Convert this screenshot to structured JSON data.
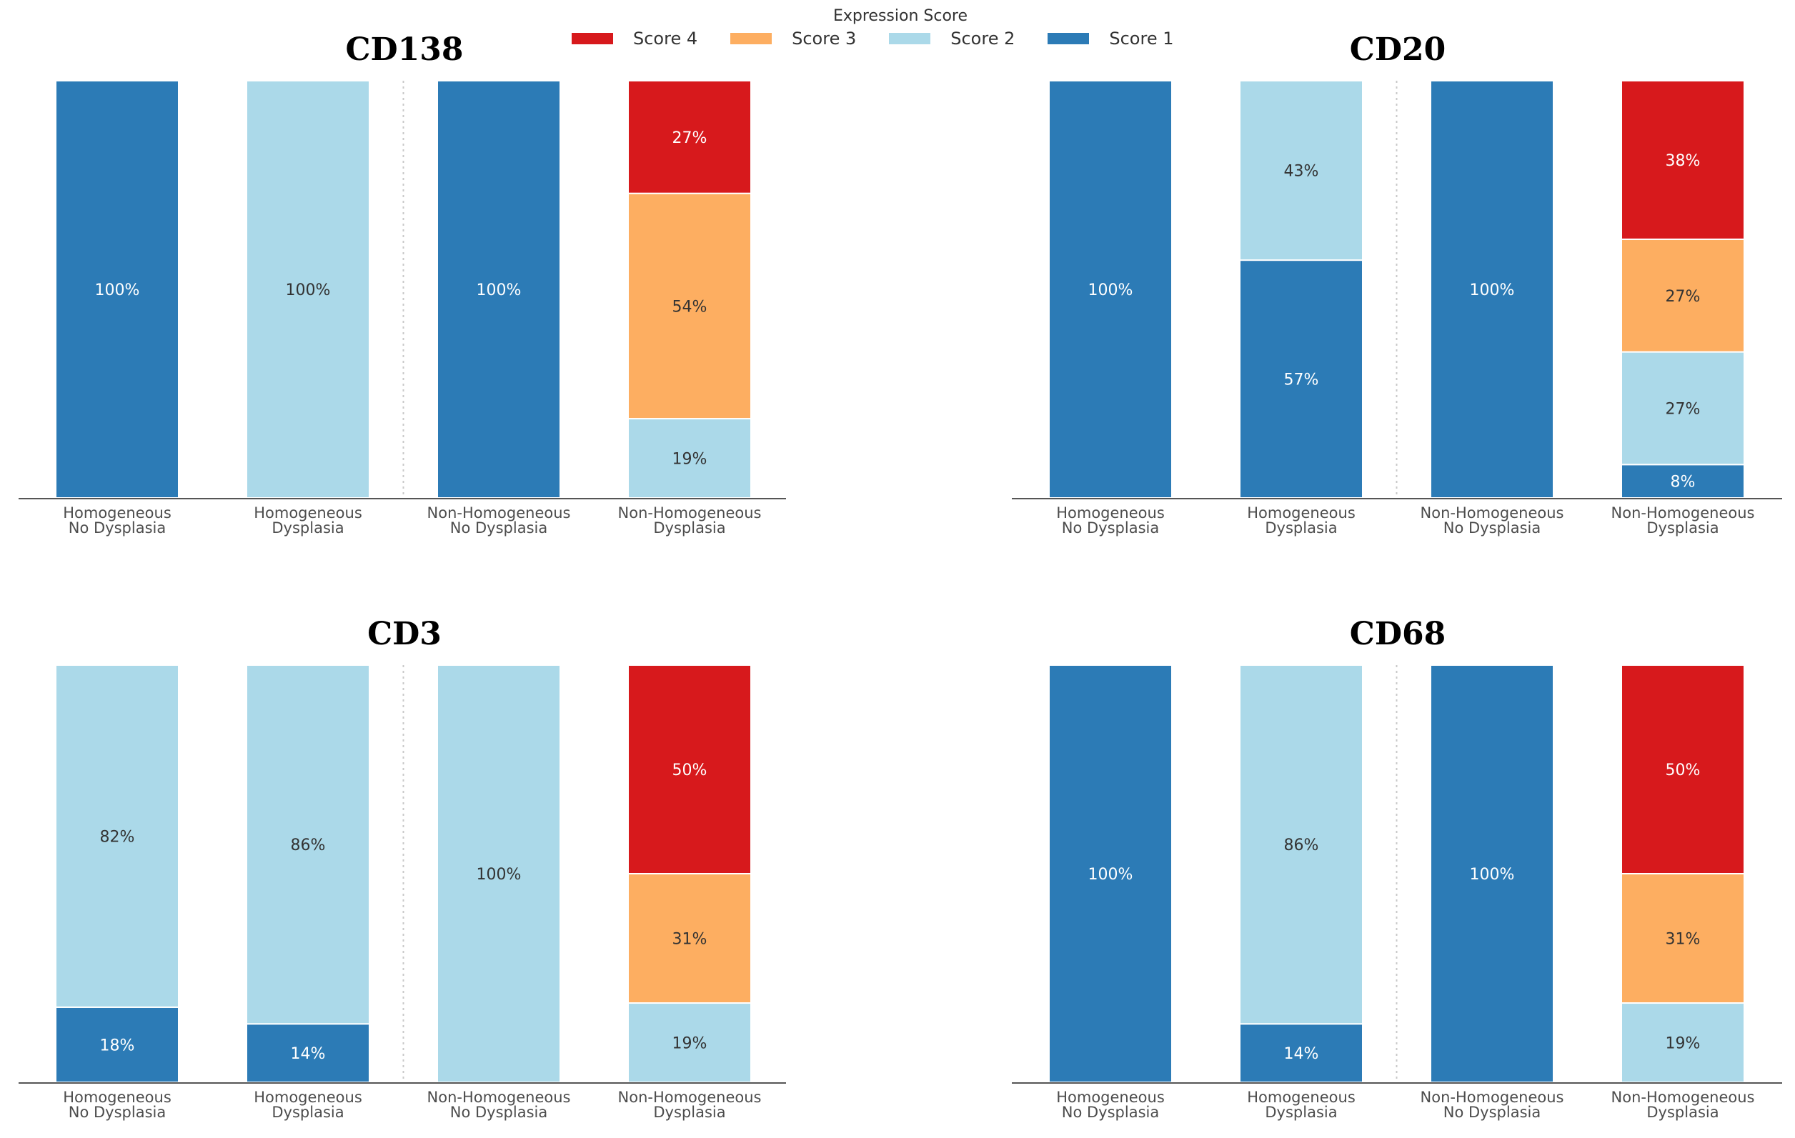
{
  "legend": {
    "title": "Expression Score",
    "items": [
      {
        "label": "Score 4",
        "color": "#d7191c"
      },
      {
        "label": "Score 3",
        "color": "#fdae61"
      },
      {
        "label": "Score 2",
        "color": "#abd9e9"
      },
      {
        "label": "Score 1",
        "color": "#2c7bb6"
      }
    ]
  },
  "chart_data": [
    {
      "type": "bar",
      "stacked": true,
      "title": "CD138",
      "categories": [
        [
          "Homogeneous",
          "No Dysplasia"
        ],
        [
          "Homogeneous",
          "Dysplasia"
        ],
        [
          "Non-Homogeneous",
          "No Dysplasia"
        ],
        [
          "Non-Homogeneous",
          "Dysplasia"
        ]
      ],
      "series": [
        {
          "name": "Score 1",
          "values": [
            100,
            0,
            100,
            0
          ]
        },
        {
          "name": "Score 2",
          "values": [
            0,
            100,
            0,
            19
          ]
        },
        {
          "name": "Score 3",
          "values": [
            0,
            0,
            0,
            54
          ]
        },
        {
          "name": "Score 4",
          "values": [
            0,
            0,
            0,
            27
          ]
        }
      ],
      "ylim": [
        0,
        100
      ]
    },
    {
      "type": "bar",
      "stacked": true,
      "title": "CD20",
      "categories": [
        [
          "Homogeneous",
          "No Dysplasia"
        ],
        [
          "Homogeneous",
          "Dysplasia"
        ],
        [
          "Non-Homogeneous",
          "No Dysplasia"
        ],
        [
          "Non-Homogeneous",
          "Dysplasia"
        ]
      ],
      "series": [
        {
          "name": "Score 1",
          "values": [
            100,
            57,
            100,
            8
          ]
        },
        {
          "name": "Score 2",
          "values": [
            0,
            43,
            0,
            27
          ]
        },
        {
          "name": "Score 3",
          "values": [
            0,
            0,
            0,
            27
          ]
        },
        {
          "name": "Score 4",
          "values": [
            0,
            0,
            0,
            38
          ]
        }
      ],
      "ylim": [
        0,
        100
      ]
    },
    {
      "type": "bar",
      "stacked": true,
      "title": "CD3",
      "categories": [
        [
          "Homogeneous",
          "No Dysplasia"
        ],
        [
          "Homogeneous",
          "Dysplasia"
        ],
        [
          "Non-Homogeneous",
          "No Dysplasia"
        ],
        [
          "Non-Homogeneous",
          "Dysplasia"
        ]
      ],
      "series": [
        {
          "name": "Score 1",
          "values": [
            18,
            14,
            0,
            0
          ]
        },
        {
          "name": "Score 2",
          "values": [
            82,
            86,
            100,
            19
          ]
        },
        {
          "name": "Score 3",
          "values": [
            0,
            0,
            0,
            31
          ]
        },
        {
          "name": "Score 4",
          "values": [
            0,
            0,
            0,
            50
          ]
        }
      ],
      "ylim": [
        0,
        100
      ]
    },
    {
      "type": "bar",
      "stacked": true,
      "title": "CD68",
      "categories": [
        [
          "Homogeneous",
          "No Dysplasia"
        ],
        [
          "Homogeneous",
          "Dysplasia"
        ],
        [
          "Non-Homogeneous",
          "No Dysplasia"
        ],
        [
          "Non-Homogeneous",
          "Dysplasia"
        ]
      ],
      "series": [
        {
          "name": "Score 1",
          "values": [
            100,
            14,
            100,
            0
          ]
        },
        {
          "name": "Score 2",
          "values": [
            0,
            86,
            0,
            19
          ]
        },
        {
          "name": "Score 3",
          "values": [
            0,
            0,
            0,
            31
          ]
        },
        {
          "name": "Score 4",
          "values": [
            0,
            0,
            0,
            50
          ]
        }
      ],
      "ylim": [
        0,
        100
      ]
    }
  ]
}
